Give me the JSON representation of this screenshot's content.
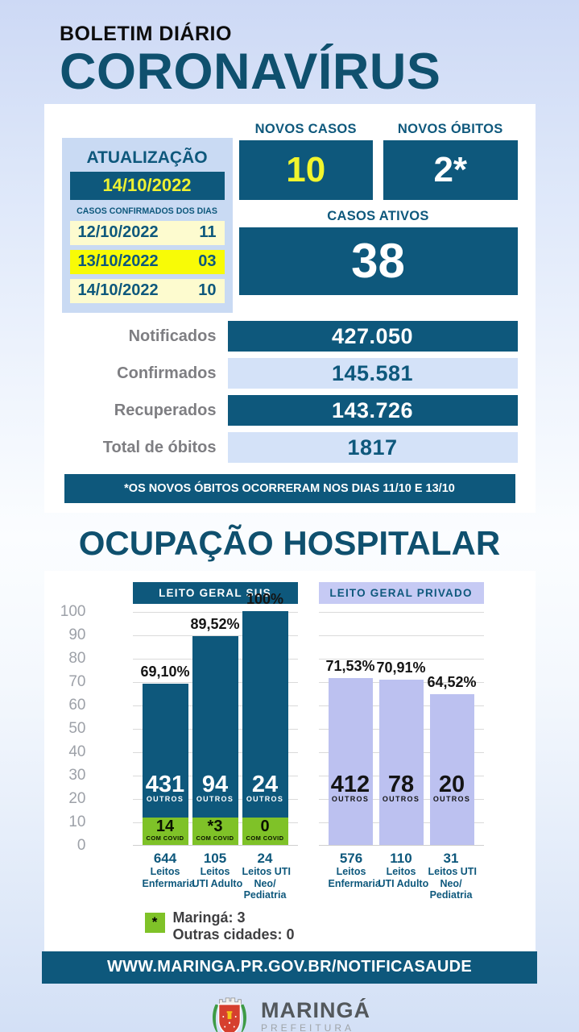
{
  "header": {
    "kicker": "BOLETIM DIÁRIO",
    "title": "CORONAVÍRUS"
  },
  "update_panel": {
    "title": "ATUALIZAÇÃO",
    "date": "14/10/2022",
    "subtitle": "CASOS CONFIRMADOS DOS DIAS",
    "rows": [
      {
        "date": "12/10/2022",
        "value": "11",
        "highlight": false
      },
      {
        "date": "13/10/2022",
        "value": "03",
        "highlight": true
      },
      {
        "date": "14/10/2022",
        "value": "10",
        "highlight": false
      }
    ]
  },
  "counters": {
    "novos_casos": {
      "label": "NOVOS CASOS",
      "value": "10"
    },
    "novos_obitos": {
      "label": "NOVOS ÓBITOS",
      "value": "2*"
    },
    "casos_ativos": {
      "label": "CASOS ATIVOS",
      "value": "38"
    }
  },
  "totals": [
    {
      "label": "Notificados",
      "value": "427.050",
      "style": "dark"
    },
    {
      "label": "Confirmados",
      "value": "145.581",
      "style": "light"
    },
    {
      "label": "Recuperados",
      "value": "143.726",
      "style": "dark"
    },
    {
      "label": "Total de óbitos",
      "value": "1817",
      "style": "light"
    }
  ],
  "note": "*OS NOVOS ÓBITOS OCORRERAM NOS DIAS 11/10 E 13/10",
  "hospital_section": {
    "title": "OCUPAÇÃO HOSPITALAR",
    "legend": {
      "marker": "*",
      "lines": [
        "Maringá: 3",
        "Outras cidades: 0"
      ]
    }
  },
  "chart_data": {
    "type": "bar",
    "title": "OCUPAÇÃO HOSPITALAR",
    "ylim": [
      0,
      100
    ],
    "yticks": [
      0,
      10,
      20,
      30,
      40,
      50,
      60,
      70,
      80,
      90,
      100
    ],
    "grid": true,
    "groups": [
      {
        "name": "LEITO GERAL SUS",
        "bars": [
          {
            "occupancy_pct": 69.1,
            "pct_label": "69,10%",
            "outros": 431,
            "outros_caption": "OUTROS",
            "com_covid": "14",
            "com_covid_caption": "COM COVID",
            "total_beds": "644",
            "category_lines": [
              "Leitos",
              "Enfermaria"
            ]
          },
          {
            "occupancy_pct": 89.52,
            "pct_label": "89,52%",
            "outros": 94,
            "outros_caption": "OUTROS",
            "com_covid": "*3",
            "com_covid_caption": "COM COVID",
            "total_beds": "105",
            "category_lines": [
              "Leitos",
              "UTI Adulto"
            ]
          },
          {
            "occupancy_pct": 100,
            "pct_label": "100%",
            "outros": 24,
            "outros_caption": "OUTROS",
            "com_covid": "0",
            "com_covid_caption": "COM COVID",
            "total_beds": "24",
            "category_lines": [
              "Leitos UTI",
              "Neo/",
              "Pediatria"
            ]
          }
        ]
      },
      {
        "name": "LEITO GERAL PRIVADO",
        "bars": [
          {
            "occupancy_pct": 71.53,
            "pct_label": "71,53%",
            "outros": 412,
            "outros_caption": "OUTROS",
            "total_beds": "576",
            "category_lines": [
              "Leitos",
              "Enfermaria"
            ]
          },
          {
            "occupancy_pct": 70.91,
            "pct_label": "70,91%",
            "outros": 78,
            "outros_caption": "OUTROS",
            "total_beds": "110",
            "category_lines": [
              "Leitos",
              "UTI Adulto"
            ]
          },
          {
            "occupancy_pct": 64.52,
            "pct_label": "64,52%",
            "outros": 20,
            "outros_caption": "OUTROS",
            "total_beds": "31",
            "category_lines": [
              "Leitos UTI",
              "Neo/",
              "Pediatria"
            ]
          }
        ]
      }
    ]
  },
  "footer": {
    "url": "WWW.MARINGA.PR.GOV.BR/NOTIFICASAUDE",
    "brand": "MARINGÁ",
    "brand_sub": "PREFEITURA"
  },
  "colors": {
    "teal": "#0e587c",
    "title_teal": "#0f506e",
    "lavender": "#bcc1f0",
    "lavender_header": "#c6caf4",
    "green": "#7fc228",
    "yellow_text": "#eef231",
    "yellow_row": "#f8fb06",
    "cream_row": "#fdfbcf",
    "light_blue_panel": "#c9daf3",
    "light_blue_bar": "#d4e2f8",
    "gray_label": "#7e7e82"
  }
}
